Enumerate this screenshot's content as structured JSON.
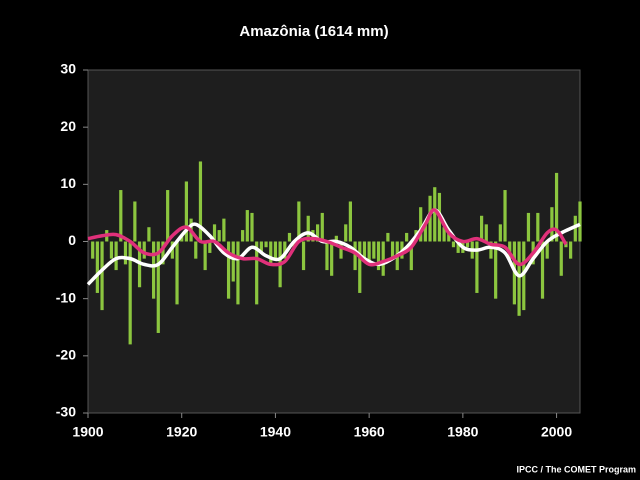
{
  "chart_data": {
    "type": "bar",
    "title": "Amazônia (1614 mm)",
    "credit": "IPCC / The COMET Program",
    "xlim": [
      1900,
      2005
    ],
    "xticks": [
      1900,
      1920,
      1940,
      1960,
      1980,
      2000
    ],
    "ylim": [
      -30,
      30
    ],
    "yticks": [
      -30,
      -20,
      -10,
      0,
      10,
      20,
      30
    ],
    "color": "#8cc63f",
    "x": [
      1901,
      1902,
      1903,
      1904,
      1905,
      1906,
      1907,
      1908,
      1909,
      1910,
      1911,
      1912,
      1913,
      1914,
      1915,
      1916,
      1917,
      1918,
      1919,
      1920,
      1921,
      1922,
      1923,
      1924,
      1925,
      1926,
      1927,
      1928,
      1929,
      1930,
      1931,
      1932,
      1933,
      1934,
      1935,
      1936,
      1937,
      1938,
      1939,
      1940,
      1941,
      1942,
      1943,
      1944,
      1945,
      1946,
      1947,
      1948,
      1949,
      1950,
      1951,
      1952,
      1953,
      1954,
      1955,
      1956,
      1957,
      1958,
      1959,
      1960,
      1961,
      1962,
      1963,
      1964,
      1965,
      1966,
      1967,
      1968,
      1969,
      1970,
      1971,
      1972,
      1973,
      1974,
      1975,
      1976,
      1977,
      1978,
      1979,
      1980,
      1981,
      1982,
      1983,
      1984,
      1985,
      1986,
      1987,
      1988,
      1989,
      1990,
      1991,
      1992,
      1993,
      1994,
      1995,
      1996,
      1997,
      1998,
      1999,
      2000,
      2001,
      2002,
      2003,
      2004,
      2005
    ],
    "values": [
      -3,
      -9,
      -12,
      2,
      -3,
      -5,
      9,
      -4,
      -18,
      7,
      -8,
      -3,
      2.5,
      -10,
      -16,
      -4,
      9,
      -3,
      -11,
      1,
      10.5,
      4,
      -3,
      14,
      -5,
      -2,
      3,
      2,
      4,
      -10,
      -7,
      -11,
      2,
      5.5,
      5,
      -11,
      -2,
      -1,
      -4,
      -3,
      -8,
      -3,
      1.5,
      -1,
      7,
      -5,
      4.5,
      2,
      3,
      5,
      -5,
      -6,
      1,
      -3,
      3,
      7,
      -5,
      -9,
      -3,
      -4,
      -3,
      -5,
      -6,
      1.5,
      -3,
      -5,
      -3,
      1.5,
      -5,
      2,
      6,
      3,
      8,
      9.5,
      8.5,
      2.5,
      2,
      -1,
      -2,
      -2,
      -1,
      -3,
      -9,
      4.5,
      3,
      -3,
      -10,
      3,
      9,
      -3,
      -11,
      -13,
      -12,
      5,
      -4,
      5,
      -10,
      -3,
      6,
      12,
      -6,
      -1,
      -3,
      4.5,
      7
    ],
    "lines": [
      {
        "color": "#ffffff",
        "x": [
          1900,
          1903,
          1906,
          1909,
          1912,
          1915,
          1918,
          1921,
          1923,
          1926,
          1929,
          1932,
          1935,
          1938,
          1941,
          1944,
          1947,
          1950,
          1953,
          1956,
          1959,
          1962,
          1965,
          1968,
          1971,
          1974,
          1977,
          1980,
          1983,
          1986,
          1989,
          1992,
          1995,
          1998,
          2001,
          2005
        ],
        "values": [
          -7.5,
          -5,
          -3,
          -3,
          -4,
          -4,
          -1,
          2,
          3,
          1,
          -2,
          -3,
          -1,
          -2.5,
          -3,
          0,
          1.5,
          0,
          0,
          -1,
          -3,
          -4,
          -3,
          -1,
          2,
          5.5,
          2,
          -1,
          -1.5,
          -1,
          -2,
          -6,
          -3,
          0,
          1.5,
          3
        ]
      },
      {
        "color": "#e0307a",
        "x": [
          1900,
          1903,
          1906,
          1909,
          1912,
          1915,
          1918,
          1921,
          1924,
          1927,
          1930,
          1933,
          1936,
          1939,
          1942,
          1945,
          1948,
          1951,
          1954,
          1957,
          1960,
          1963,
          1966,
          1969,
          1972,
          1974,
          1977,
          1980,
          1983,
          1986,
          1989,
          1992,
          1995,
          1998,
          2000,
          2002
        ],
        "values": [
          0.5,
          1,
          1.2,
          0,
          -2,
          -2,
          1,
          2.5,
          0,
          0,
          -2,
          -3,
          -3,
          -4,
          -3.5,
          0,
          0.5,
          0,
          -1,
          -2,
          -4,
          -3.5,
          -2.5,
          -1,
          3,
          5.5,
          1.5,
          0,
          0.5,
          -0.5,
          -1,
          -4,
          -2,
          1.5,
          2,
          -0.5
        ]
      }
    ]
  }
}
